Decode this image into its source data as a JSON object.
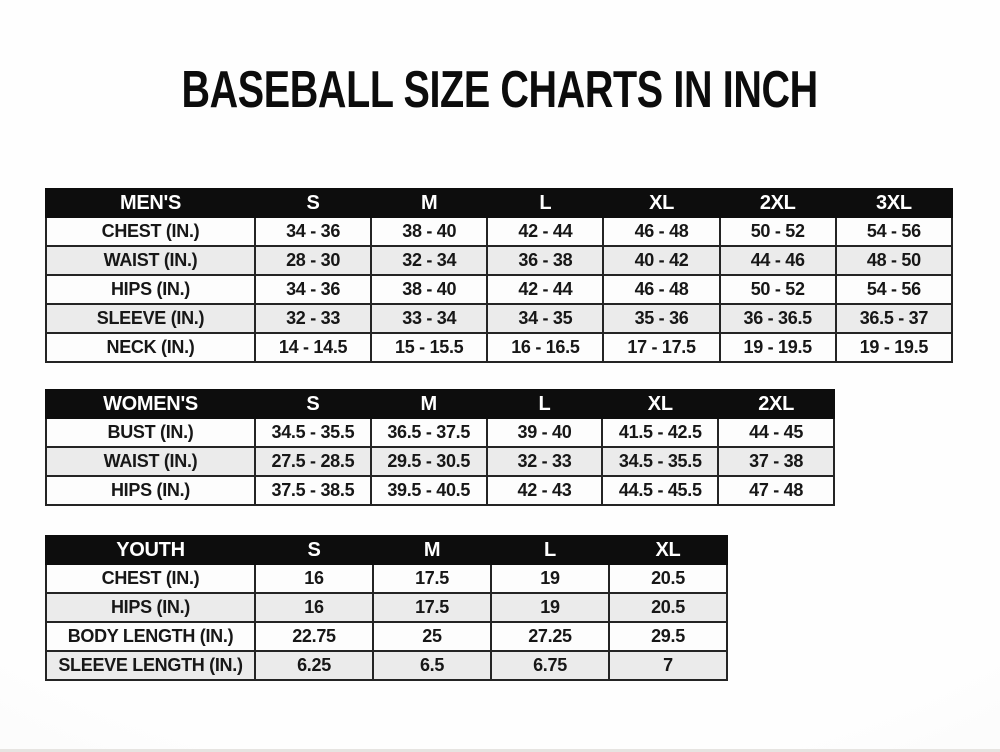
{
  "title": "BASEBALL SIZE CHARTS IN INCH",
  "colors": {
    "header_bg": "#0d0d0d",
    "header_text": "#ffffff",
    "row_bg": "#fdfdfd",
    "row_alt_bg": "#ebebeb",
    "border": "#1a1a1a",
    "text": "#171717",
    "page_bg": "#fcfcfc"
  },
  "chart_data": [
    {
      "type": "table",
      "name": "MEN'S",
      "columns": [
        "S",
        "M",
        "L",
        "XL",
        "2XL",
        "3XL"
      ],
      "rows": [
        {
          "label": "CHEST (IN.)",
          "values": [
            "34 - 36",
            "38 - 40",
            "42 - 44",
            "46 - 48",
            "50 - 52",
            "54 - 56"
          ]
        },
        {
          "label": "WAIST (IN.)",
          "values": [
            "28 - 30",
            "32 - 34",
            "36 - 38",
            "40 - 42",
            "44 - 46",
            "48 - 50"
          ]
        },
        {
          "label": "HIPS (IN.)",
          "values": [
            "34 - 36",
            "38 - 40",
            "42 - 44",
            "46 - 48",
            "50 - 52",
            "54 - 56"
          ]
        },
        {
          "label": "SLEEVE (IN.)",
          "values": [
            "32 - 33",
            "33 - 34",
            "34 - 35",
            "35 - 36",
            "36 - 36.5",
            "36.5 - 37"
          ]
        },
        {
          "label": "NECK (IN.)",
          "values": [
            "14 - 14.5",
            "15 - 15.5",
            "16 - 16.5",
            "17 - 17.5",
            "19 - 19.5",
            "19 - 19.5"
          ]
        }
      ]
    },
    {
      "type": "table",
      "name": "WOMEN'S",
      "columns": [
        "S",
        "M",
        "L",
        "XL",
        "2XL"
      ],
      "rows": [
        {
          "label": "BUST (IN.)",
          "values": [
            "34.5 - 35.5",
            "36.5 - 37.5",
            "39 - 40",
            "41.5 - 42.5",
            "44 - 45"
          ]
        },
        {
          "label": "WAIST (IN.)",
          "values": [
            "27.5 - 28.5",
            "29.5 - 30.5",
            "32 - 33",
            "34.5 - 35.5",
            "37 - 38"
          ]
        },
        {
          "label": "HIPS (IN.)",
          "values": [
            "37.5 - 38.5",
            "39.5 - 40.5",
            "42 - 43",
            "44.5 - 45.5",
            "47 - 48"
          ]
        }
      ]
    },
    {
      "type": "table",
      "name": "YOUTH",
      "columns": [
        "S",
        "M",
        "L",
        "XL"
      ],
      "rows": [
        {
          "label": "CHEST (IN.)",
          "values": [
            "16",
            "17.5",
            "19",
            "20.5"
          ]
        },
        {
          "label": "HIPS (IN.)",
          "values": [
            "16",
            "17.5",
            "19",
            "20.5"
          ]
        },
        {
          "label": "BODY LENGTH (IN.)",
          "values": [
            "22.75",
            "25",
            "27.25",
            "29.5"
          ]
        },
        {
          "label": "SLEEVE LENGTH (IN.)",
          "values": [
            "6.25",
            "6.5",
            "6.75",
            "7"
          ]
        }
      ]
    }
  ]
}
